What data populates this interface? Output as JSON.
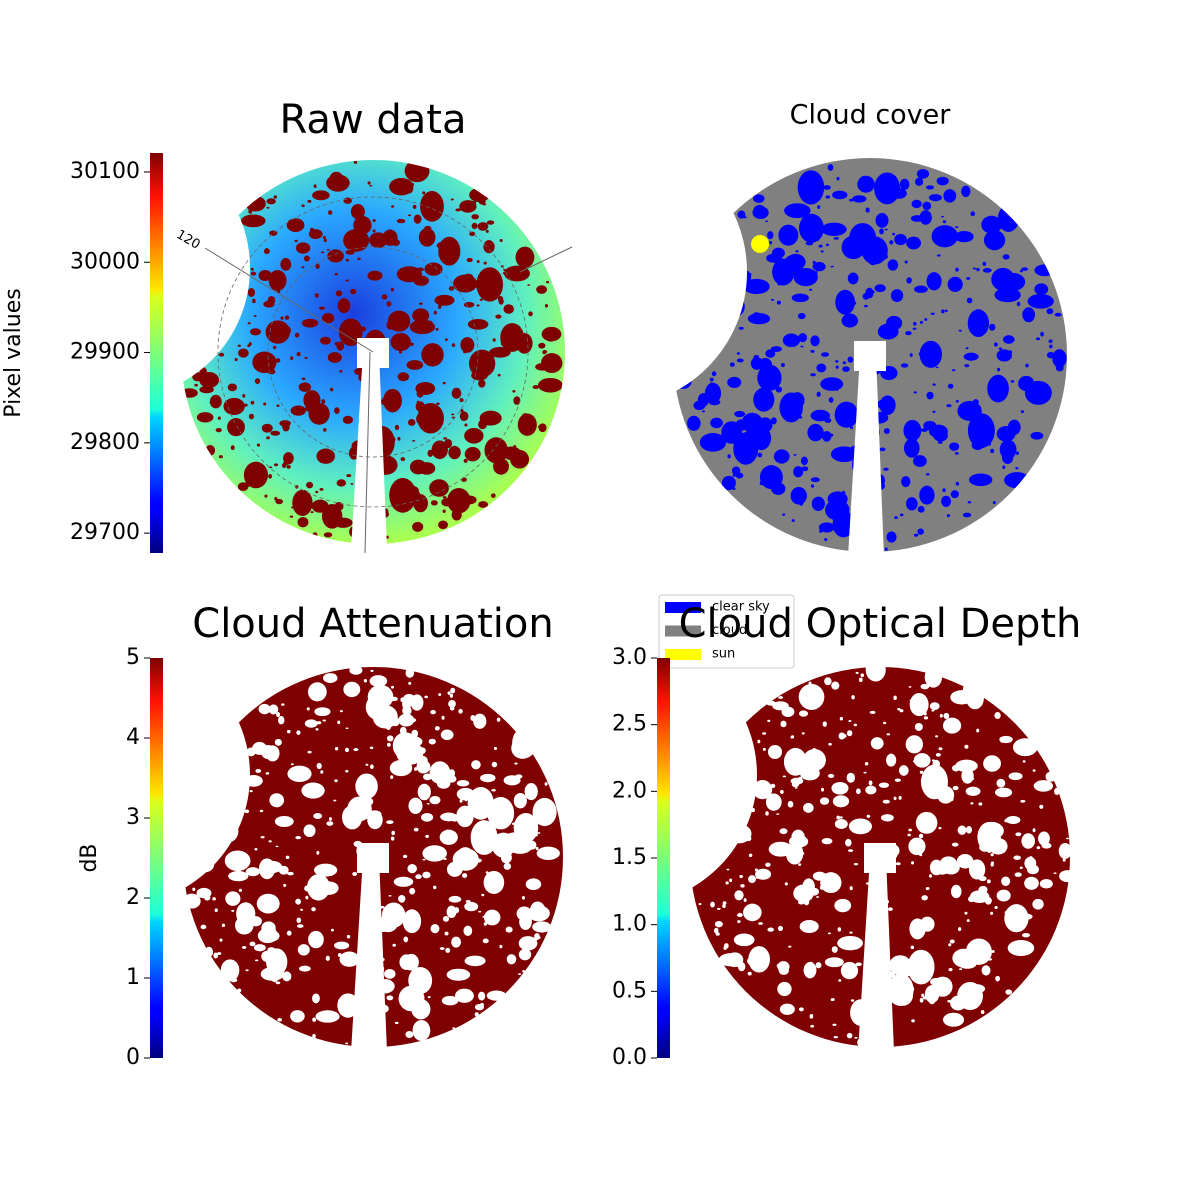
{
  "chart_data": [
    {
      "type": "heatmap",
      "title": "Raw data",
      "ylabel": "Pixel values",
      "colormap": "jet",
      "ylim": [
        29678,
        30121
      ],
      "yticks": [
        29700,
        29800,
        29900,
        30000,
        30100
      ],
      "annotations": [
        "120"
      ]
    },
    {
      "type": "category-map",
      "title": "Cloud cover",
      "legend": [
        {
          "name": "clear sky",
          "color": "#0000ff"
        },
        {
          "name": "cloud",
          "color": "#808080"
        },
        {
          "name": "sun",
          "color": "#ffff00"
        }
      ]
    },
    {
      "type": "heatmap",
      "title": "Cloud Attenuation",
      "ylabel": "dB",
      "colormap": "jet",
      "ylim": [
        0,
        5
      ],
      "yticks": [
        0,
        1,
        2,
        3,
        4,
        5
      ]
    },
    {
      "type": "heatmap",
      "title": "Cloud Optical Depth",
      "colormap": "jet",
      "ylim": [
        0,
        3
      ],
      "yticks": [
        {
          "value": 0,
          "label": "0.0"
        },
        0.5,
        {
          "value": 1,
          "label": "1.0"
        },
        1.5,
        {
          "value": 2,
          "label": "2.0"
        },
        2.5,
        {
          "value": 3,
          "label": "3.0"
        }
      ]
    }
  ]
}
